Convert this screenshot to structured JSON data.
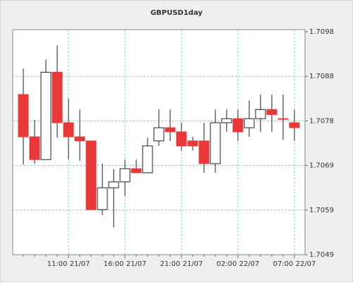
{
  "chart_data": {
    "type": "candlestick",
    "title": "GBPUSD1day",
    "categories": [
      null,
      null,
      null,
      null,
      "11:00 21/07",
      null,
      null,
      null,
      null,
      "16:00 21/07",
      null,
      null,
      null,
      null,
      "21:00 21/07",
      null,
      null,
      null,
      null,
      "02:00 22/07",
      null,
      null,
      null,
      null,
      "07:00 22/07"
    ],
    "open": [
      1.70842,
      1.70749,
      1.70699,
      1.70891,
      1.7078,
      1.70749,
      1.7074,
      1.70589,
      1.70637,
      1.7065,
      1.70679,
      1.7067,
      1.7074,
      1.70769,
      1.7076,
      1.7074,
      1.7074,
      1.7069,
      1.7078,
      1.70789,
      1.70769,
      1.70789,
      1.70809,
      1.70789,
      1.7078
    ],
    "high": [
      1.70899,
      1.70786,
      1.70919,
      1.7095,
      1.70833,
      1.70809,
      1.7074,
      1.7069,
      1.70678,
      1.70699,
      1.70699,
      1.70747,
      1.70809,
      1.70809,
      1.7078,
      1.70749,
      1.7078,
      1.70809,
      1.70809,
      1.70809,
      1.70829,
      1.70842,
      1.70842,
      1.70842,
      1.70809
    ],
    "low": [
      1.70688,
      1.7069,
      1.70699,
      1.70747,
      1.70699,
      1.70696,
      1.70589,
      1.70577,
      1.7055,
      1.70619,
      1.7067,
      1.7067,
      1.70729,
      1.7074,
      1.70719,
      1.70719,
      1.7067,
      1.7067,
      1.7076,
      1.7074,
      1.70749,
      1.7076,
      1.7076,
      1.70743,
      1.7074
    ],
    "close": [
      1.70749,
      1.70699,
      1.70891,
      1.7078,
      1.70749,
      1.7074,
      1.70589,
      1.70637,
      1.7065,
      1.70679,
      1.7067,
      1.70729,
      1.70769,
      1.7076,
      1.70729,
      1.70729,
      1.7069,
      1.7078,
      1.70789,
      1.7076,
      1.70789,
      1.70809,
      1.70798,
      1.70788,
      1.70769
    ],
    "up_color": "#ffffff",
    "down_color": "#e8393a",
    "ylim": [
      1.7049,
      1.7098
    ],
    "yticks": [
      1.7049,
      {
        "value": 1.70588,
        "label": "1.7059"
      },
      {
        "value": 1.70686,
        "label": "1.7069"
      },
      {
        "value": 1.70784,
        "label": "1.7078"
      },
      {
        "value": 1.70882,
        "label": "1.7088"
      },
      1.7098
    ],
    "grid": true
  }
}
